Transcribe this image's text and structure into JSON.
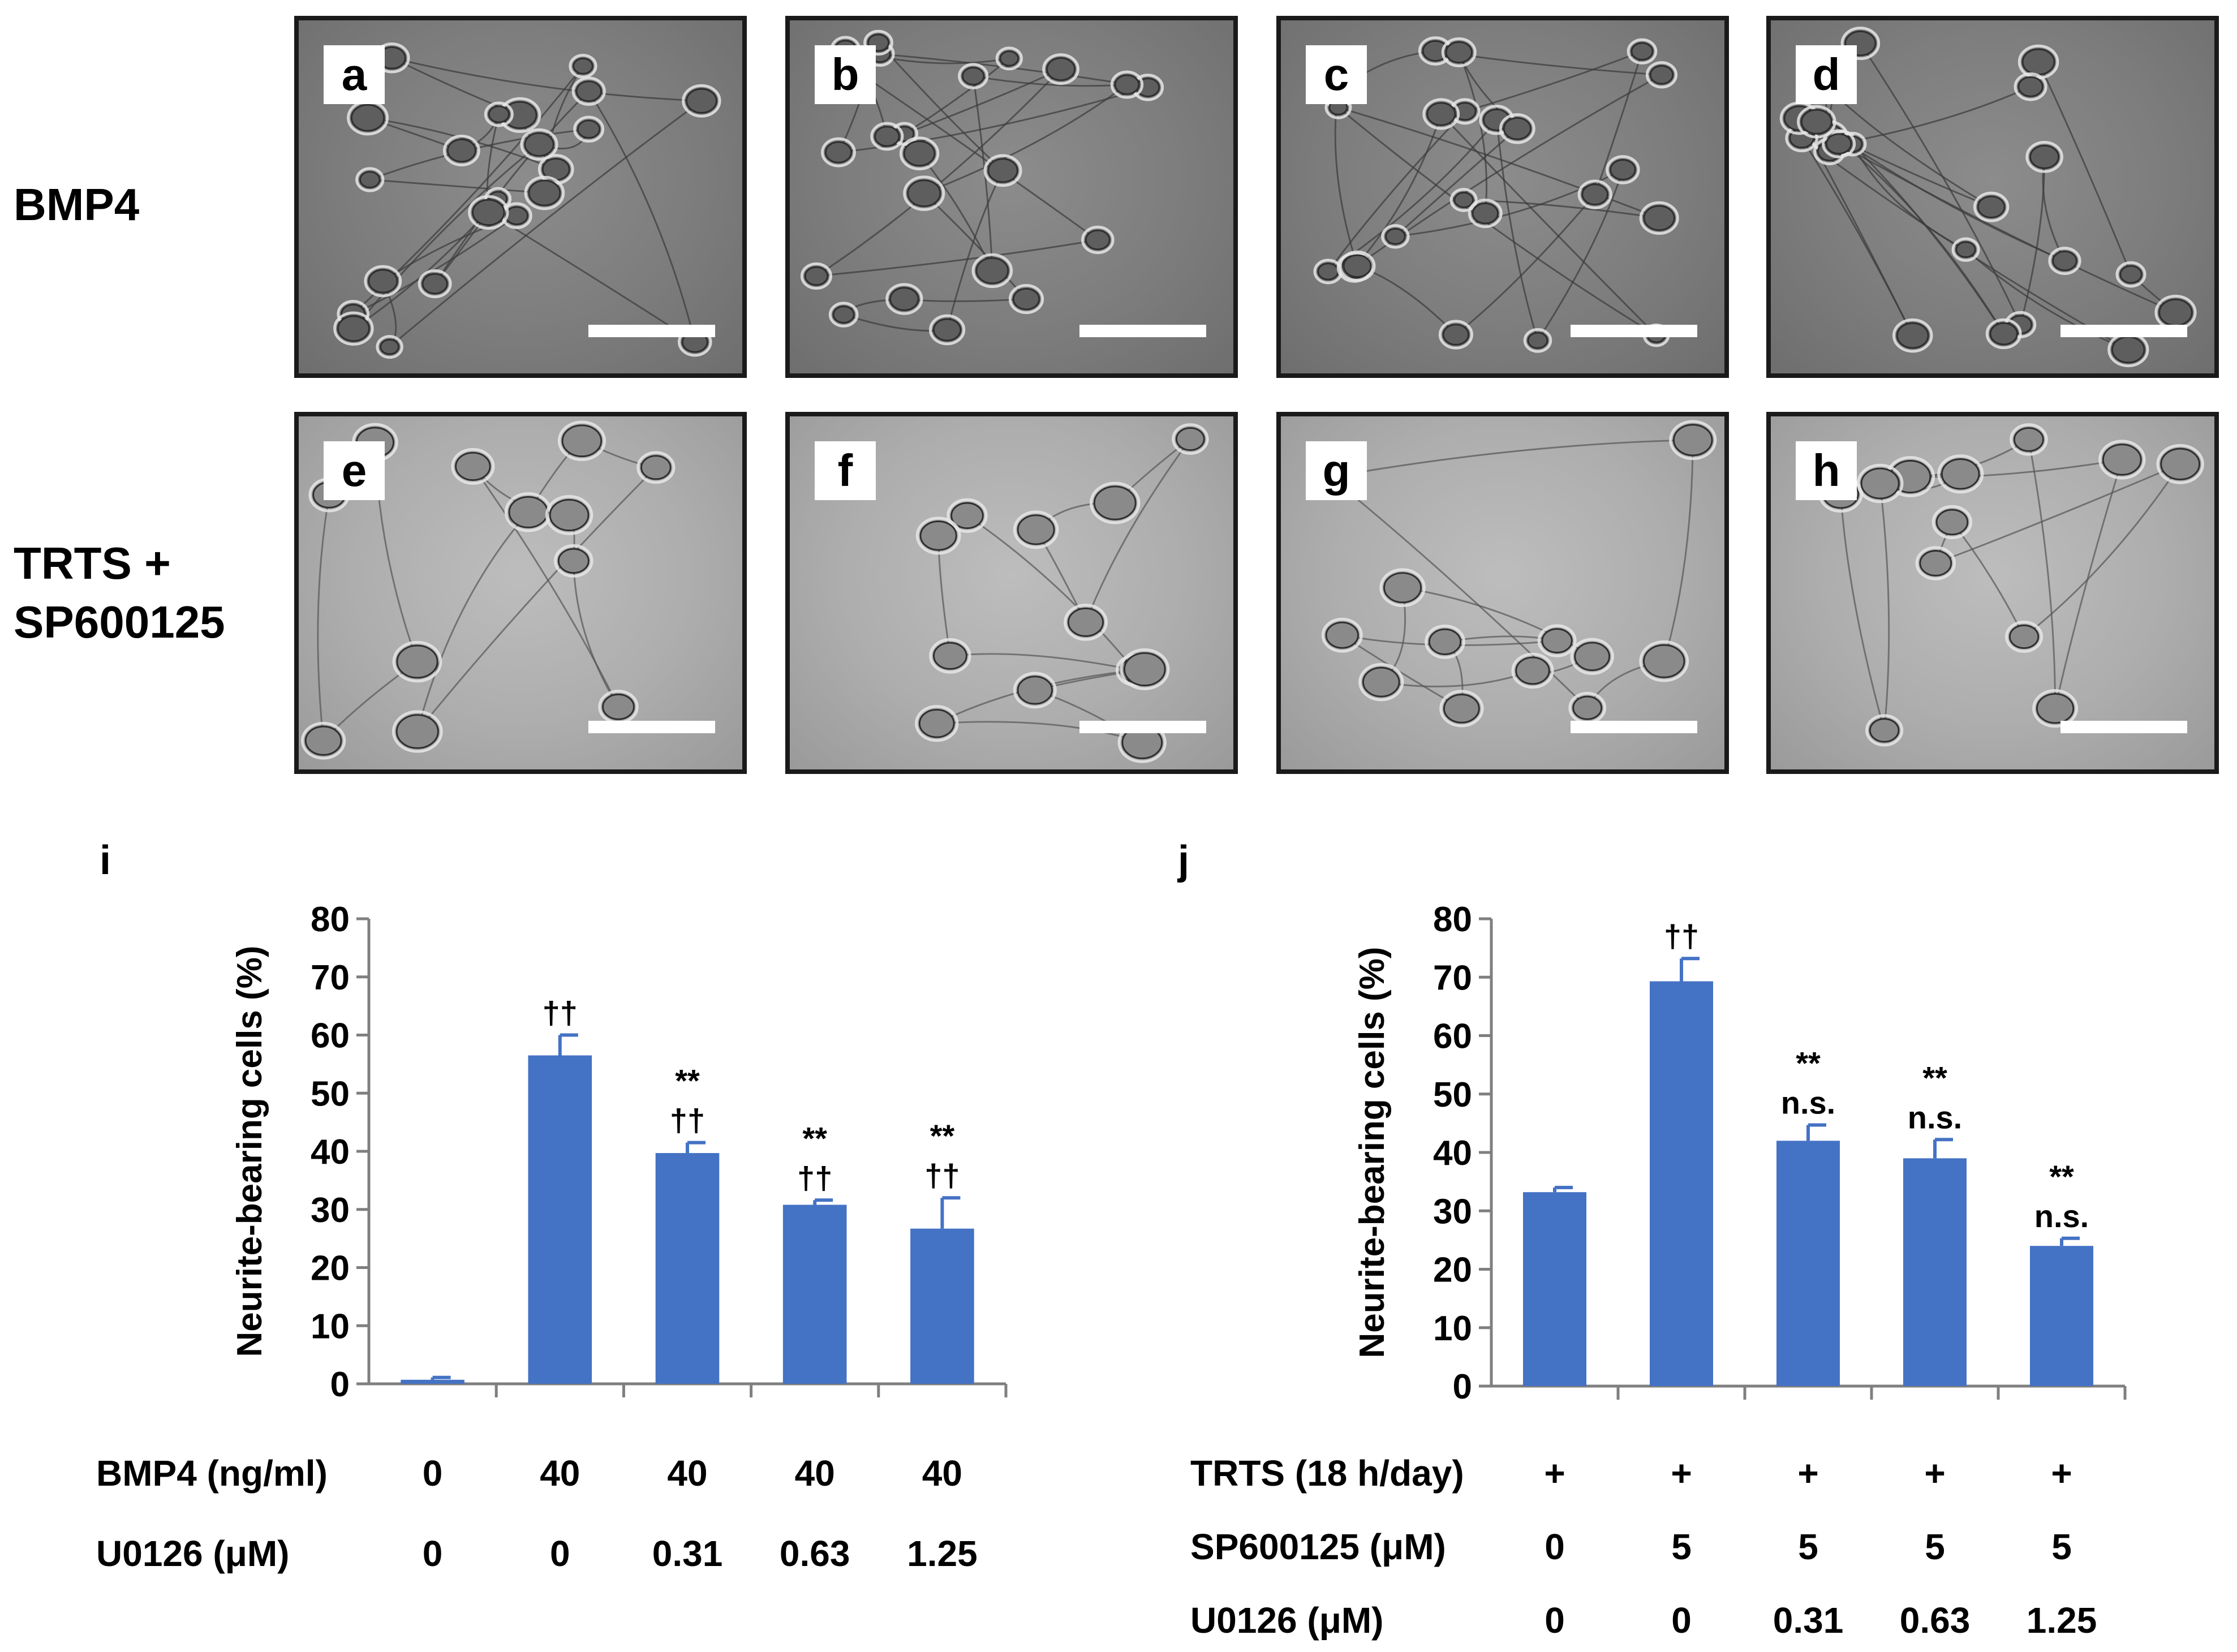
{
  "row_labels": {
    "top": "BMP4",
    "bottom": "TRTS +\nSP600125"
  },
  "micrographs": [
    {
      "letter": "a"
    },
    {
      "letter": "b"
    },
    {
      "letter": "c"
    },
    {
      "letter": "d"
    },
    {
      "letter": "e"
    },
    {
      "letter": "f"
    },
    {
      "letter": "g"
    },
    {
      "letter": "h"
    }
  ],
  "chart_data": [
    {
      "type": "bar",
      "panel_label": "i",
      "ylabel": "Neurite-bearing cells (%)",
      "ylim": [
        0,
        80
      ],
      "yticks": [
        0,
        10,
        20,
        30,
        40,
        50,
        60,
        70,
        80
      ],
      "values": [
        0.7,
        56.5,
        39.7,
        30.8,
        26.7
      ],
      "errors": [
        0.4,
        3.5,
        1.8,
        0.8,
        5.3
      ],
      "annotations": [
        [],
        [
          "††"
        ],
        [
          "**",
          "††"
        ],
        [
          "**",
          "††"
        ],
        [
          "**",
          "††"
        ]
      ],
      "bar_color": "#4472C4",
      "conditions": [
        {
          "name": "BMP4 (ng/ml)",
          "values": [
            "0",
            "40",
            "40",
            "40",
            "40"
          ]
        },
        {
          "name": "U0126 (μM)",
          "values": [
            "0",
            "0",
            "0.31",
            "0.63",
            "1.25"
          ]
        }
      ]
    },
    {
      "type": "bar",
      "panel_label": "j",
      "ylabel": "Neurite-bearing cells (%)",
      "ylim": [
        0,
        80
      ],
      "yticks": [
        0,
        10,
        20,
        30,
        40,
        50,
        60,
        70,
        80
      ],
      "values": [
        33.2,
        69.3,
        42.0,
        39.0,
        24.0
      ],
      "errors": [
        0.8,
        3.9,
        2.7,
        3.2,
        1.3
      ],
      "annotations": [
        [],
        [
          "††"
        ],
        [
          "**",
          "n.s."
        ],
        [
          "**",
          "n.s."
        ],
        [
          "**",
          "n.s."
        ]
      ],
      "bar_color": "#4472C4",
      "conditions": [
        {
          "name": "TRTS (18 h/day)",
          "values": [
            "+",
            "+",
            "+",
            "+",
            "+"
          ]
        },
        {
          "name": "SP600125 (μM)",
          "values": [
            "0",
            "5",
            "5",
            "5",
            "5"
          ]
        },
        {
          "name": "U0126 (μM)",
          "values": [
            "0",
            "0",
            "0.31",
            "0.63",
            "1.25"
          ]
        }
      ]
    }
  ]
}
